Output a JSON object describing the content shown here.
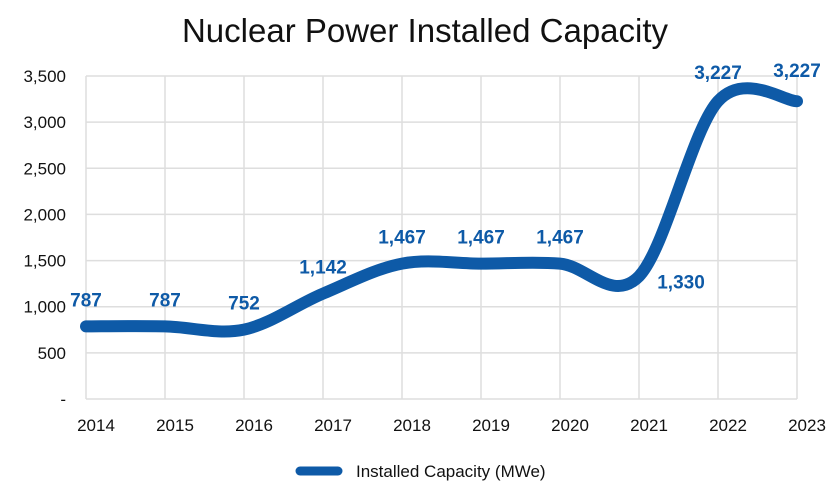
{
  "chart_data": {
    "type": "line",
    "title": "Nuclear Power Installed Capacity",
    "xlabel": "",
    "ylabel": "",
    "categories": [
      "2014",
      "2015",
      "2016",
      "2017",
      "2018",
      "2019",
      "2020",
      "2021",
      "2022",
      "2023"
    ],
    "series": [
      {
        "name": "Installed Capacity (MWe)",
        "values": [
          787,
          787,
          752,
          1142,
          1467,
          1467,
          1467,
          1330,
          3227,
          3227
        ],
        "color": "#0e5aa7"
      }
    ],
    "data_labels": [
      "787",
      "787",
      "752",
      "1,142",
      "1,467",
      "1,467",
      "1,467",
      "1,330",
      "3,227",
      "3,227"
    ],
    "ylim": [
      0,
      3500
    ],
    "yticks": [
      0,
      500,
      1000,
      1500,
      2000,
      2500,
      3000,
      3500
    ],
    "ytick_labels": [
      "-",
      "500",
      "1,000",
      "1,500",
      "2,000",
      "2,500",
      "3,000",
      "3,500"
    ],
    "grid": true,
    "legend": {
      "position": "bottom-center",
      "entries": [
        "Installed Capacity (MWe)"
      ]
    }
  }
}
